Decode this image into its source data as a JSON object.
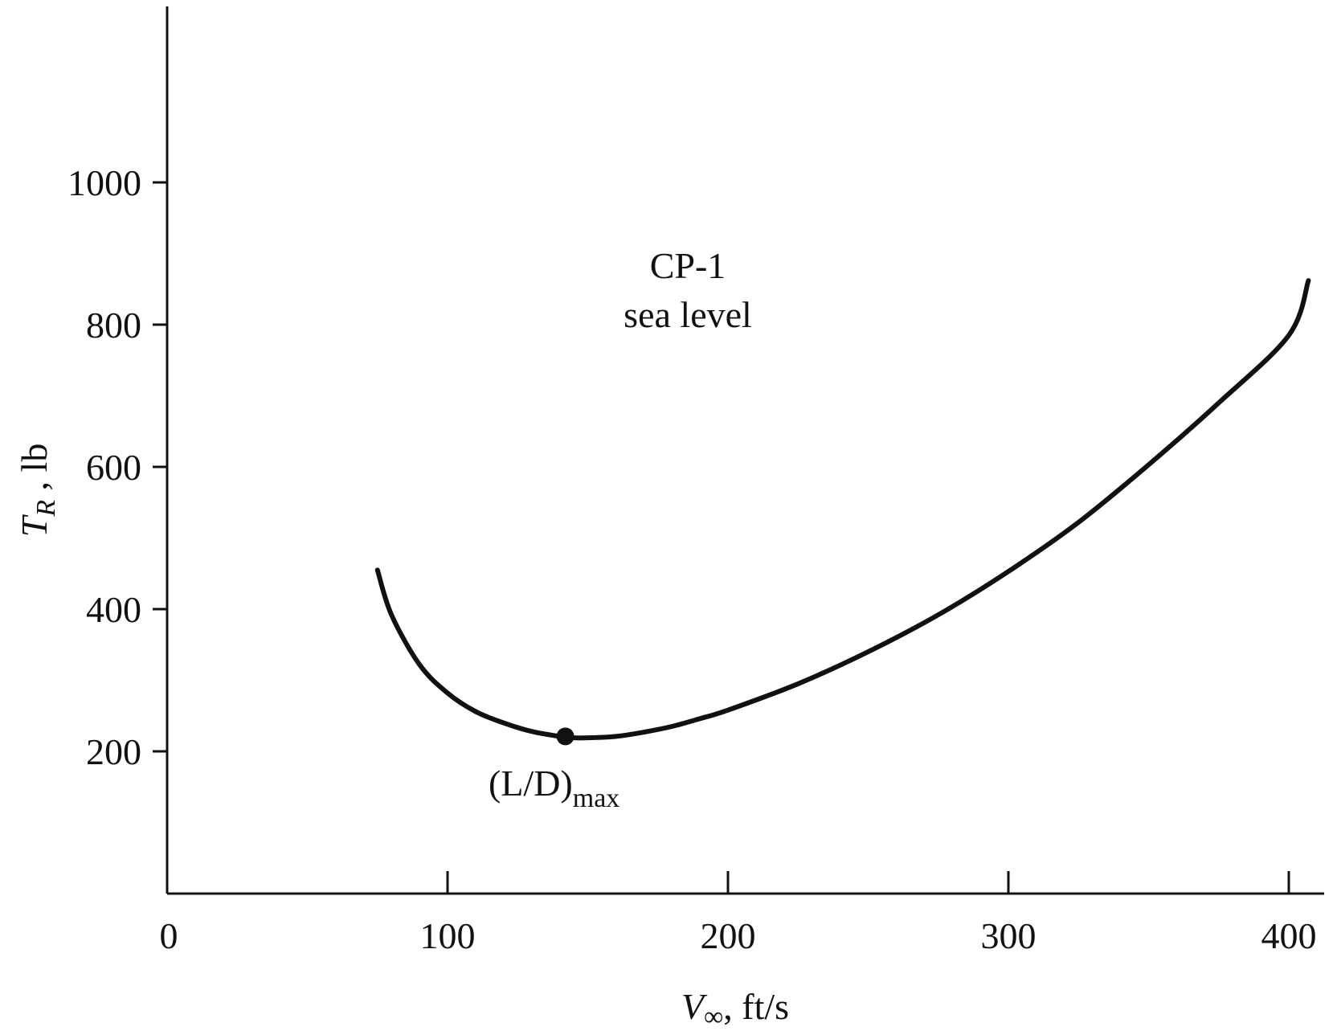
{
  "chart_data": {
    "type": "line",
    "x_axis": {
      "range": [
        0,
        410
      ],
      "ticks": [
        0,
        100,
        200,
        300,
        400
      ],
      "label": {
        "base": "V",
        "symbol": "∞",
        "unit": ", ft/s"
      }
    },
    "y_axis": {
      "range": [
        0,
        1250
      ],
      "ticks": [
        200,
        400,
        600,
        800,
        1000
      ],
      "label": {
        "base": "T",
        "subscript": "R",
        "unit": " , lb"
      }
    },
    "series": [
      {
        "points": [
          [
            75,
            455
          ],
          [
            80,
            392
          ],
          [
            90,
            322
          ],
          [
            100,
            282
          ],
          [
            110,
            256
          ],
          [
            120,
            240
          ],
          [
            130,
            228
          ],
          [
            140,
            221
          ],
          [
            145,
            219
          ],
          [
            150,
            219
          ],
          [
            160,
            221
          ],
          [
            170,
            227
          ],
          [
            180,
            235
          ],
          [
            190,
            246
          ],
          [
            200,
            258
          ],
          [
            225,
            295
          ],
          [
            250,
            340
          ],
          [
            275,
            392
          ],
          [
            300,
            453
          ],
          [
            325,
            522
          ],
          [
            350,
            603
          ],
          [
            375,
            690
          ],
          [
            400,
            785
          ],
          [
            407,
            862
          ]
        ]
      }
    ],
    "highlight_point": {
      "x": 142,
      "y": 221,
      "label": {
        "main": "(L/D)",
        "subscript": "max"
      }
    },
    "annotation": {
      "line1": "CP-1",
      "line2": "sea level"
    },
    "grid": false,
    "legend": "none"
  }
}
